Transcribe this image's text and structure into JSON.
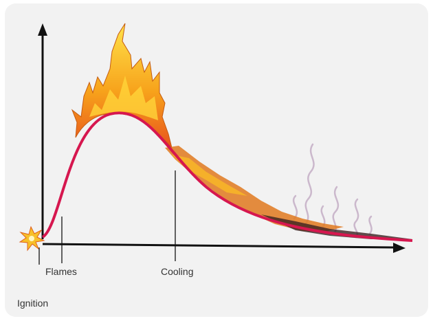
{
  "labels": {
    "flames": "Flames",
    "cooling": "Cooling",
    "ignition": "Ignition"
  }
}
